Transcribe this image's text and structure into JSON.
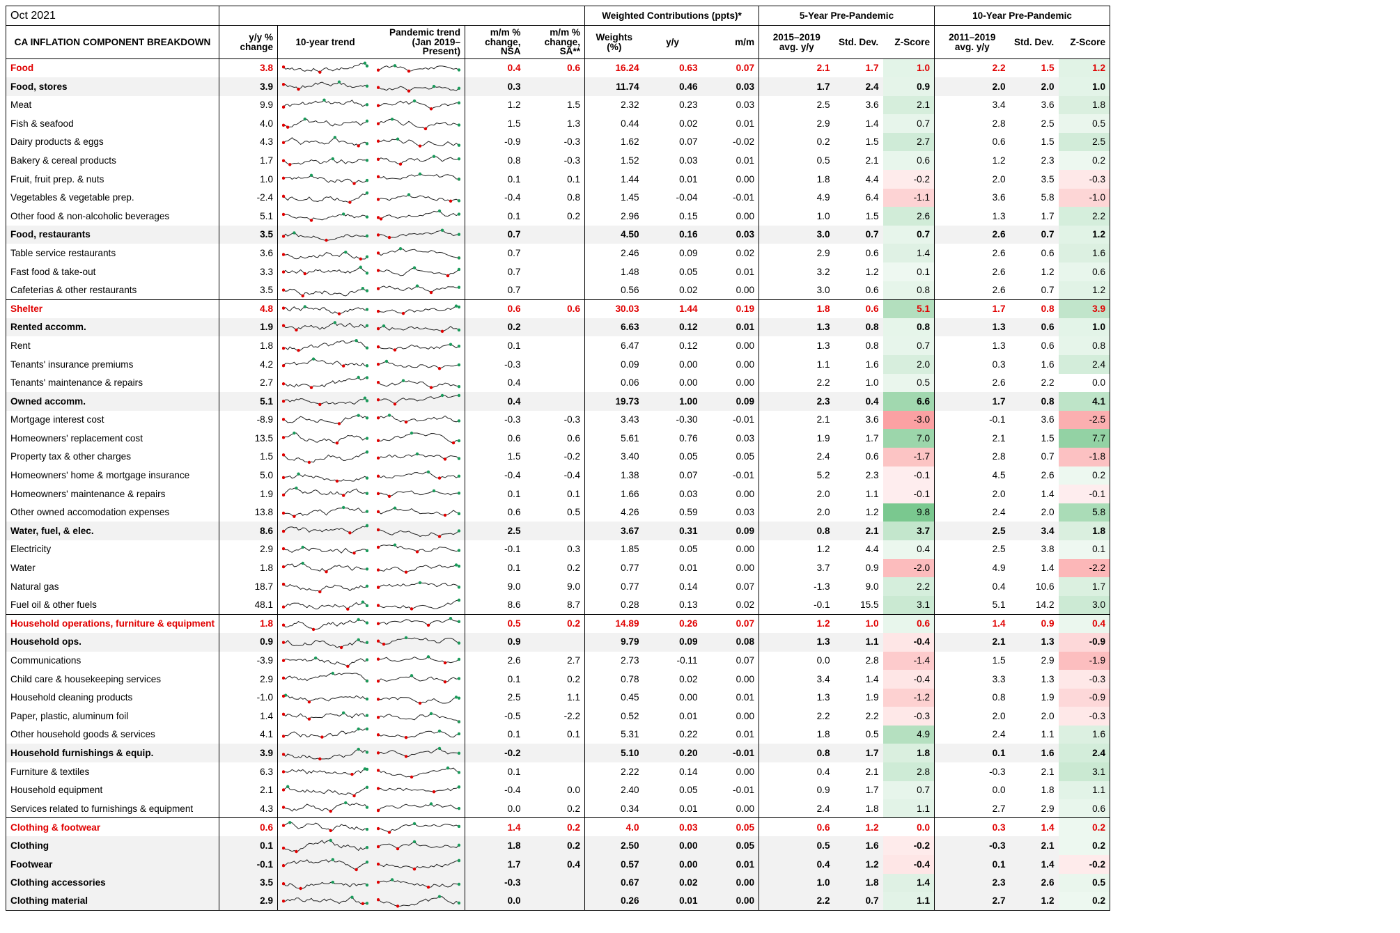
{
  "period": "Oct 2021",
  "group_headers": {
    "weighted": "Weighted Contributions (ppts)*",
    "five_year": "5-Year Pre-Pandemic",
    "ten_year": "10-Year Pre-Pandemic"
  },
  "columns": {
    "component": "CA INFLATION COMPONENT BREAKDOWN",
    "yy": "y/y % change",
    "trend10": "10-year trend",
    "pandemic": "Pandemic trend (Jan 2019–Present)",
    "mm_nsa": "m/m % change, NSA",
    "mm_sa": "m/m % change, SA**",
    "weights": "Weights (%)",
    "wc_yy": "y/y",
    "wc_mm": "m/m",
    "avg5": "2015–2019 avg. y/y",
    "sd5": "Std. Dev.",
    "z5": "Z-Score",
    "avg10": "2011–2019 avg. y/y",
    "sd10": "Std. Dev.",
    "z10": "Z-Score"
  },
  "colors": {
    "category": "#e00000",
    "positive_z": "#63be7b",
    "negative_z": "#f8696b",
    "subtotal_bg": "#f2f2f2"
  },
  "rows": [
    {
      "type": "cat",
      "name": "Food",
      "yy": "3.8",
      "mm_nsa": "0.4",
      "mm_sa": "0.6",
      "w": "16.24",
      "wy": "0.63",
      "wm": "0.07",
      "a5": "2.1",
      "s5": "1.7",
      "z5": "1.0",
      "a10": "2.2",
      "s10": "1.5",
      "z10": "1.2"
    },
    {
      "type": "sub",
      "name": "Food, stores",
      "yy": "3.9",
      "mm_nsa": "0.3",
      "mm_sa": "",
      "w": "11.74",
      "wy": "0.46",
      "wm": "0.03",
      "a5": "1.7",
      "s5": "2.4",
      "z5": "0.9",
      "a10": "2.0",
      "s10": "2.0",
      "z10": "1.0"
    },
    {
      "type": "item",
      "name": "Meat",
      "yy": "9.9",
      "mm_nsa": "1.2",
      "mm_sa": "1.5",
      "w": "2.32",
      "wy": "0.23",
      "wm": "0.03",
      "a5": "2.5",
      "s5": "3.6",
      "z5": "2.1",
      "a10": "3.4",
      "s10": "3.6",
      "z10": "1.8"
    },
    {
      "type": "item",
      "name": "Fish & seafood",
      "yy": "4.0",
      "mm_nsa": "1.5",
      "mm_sa": "1.3",
      "w": "0.44",
      "wy": "0.02",
      "wm": "0.01",
      "a5": "2.9",
      "s5": "1.4",
      "z5": "0.7",
      "a10": "2.8",
      "s10": "2.5",
      "z10": "0.5"
    },
    {
      "type": "item",
      "name": "Dairy products & eggs",
      "yy": "4.3",
      "mm_nsa": "-0.9",
      "mm_sa": "-0.3",
      "w": "1.62",
      "wy": "0.07",
      "wm": "-0.02",
      "a5": "0.2",
      "s5": "1.5",
      "z5": "2.7",
      "a10": "0.6",
      "s10": "1.5",
      "z10": "2.5"
    },
    {
      "type": "item",
      "name": "Bakery & cereal products",
      "yy": "1.7",
      "mm_nsa": "0.8",
      "mm_sa": "-0.3",
      "w": "1.52",
      "wy": "0.03",
      "wm": "0.01",
      "a5": "0.5",
      "s5": "2.1",
      "z5": "0.6",
      "a10": "1.2",
      "s10": "2.3",
      "z10": "0.2"
    },
    {
      "type": "item",
      "name": "Fruit, fruit prep. & nuts",
      "yy": "1.0",
      "mm_nsa": "0.1",
      "mm_sa": "0.1",
      "w": "1.44",
      "wy": "0.01",
      "wm": "0.00",
      "a5": "1.8",
      "s5": "4.4",
      "z5": "-0.2",
      "a10": "2.0",
      "s10": "3.5",
      "z10": "-0.3"
    },
    {
      "type": "item",
      "name": "Vegetables & vegetable prep.",
      "yy": "-2.4",
      "mm_nsa": "-0.4",
      "mm_sa": "0.8",
      "w": "1.45",
      "wy": "-0.04",
      "wm": "-0.01",
      "a5": "4.9",
      "s5": "6.4",
      "z5": "-1.1",
      "a10": "3.6",
      "s10": "5.8",
      "z10": "-1.0"
    },
    {
      "type": "item",
      "name": "Other food & non-alcoholic beverages",
      "yy": "5.1",
      "mm_nsa": "0.1",
      "mm_sa": "0.2",
      "w": "2.96",
      "wy": "0.15",
      "wm": "0.00",
      "a5": "1.0",
      "s5": "1.5",
      "z5": "2.6",
      "a10": "1.3",
      "s10": "1.7",
      "z10": "2.2"
    },
    {
      "type": "sub",
      "name": "Food, restaurants",
      "yy": "3.5",
      "mm_nsa": "0.7",
      "mm_sa": "",
      "w": "4.50",
      "wy": "0.16",
      "wm": "0.03",
      "a5": "3.0",
      "s5": "0.7",
      "z5": "0.7",
      "a10": "2.6",
      "s10": "0.7",
      "z10": "1.2"
    },
    {
      "type": "item",
      "name": "Table service restaurants",
      "yy": "3.6",
      "mm_nsa": "0.7",
      "mm_sa": "",
      "w": "2.46",
      "wy": "0.09",
      "wm": "0.02",
      "a5": "2.9",
      "s5": "0.6",
      "z5": "1.4",
      "a10": "2.6",
      "s10": "0.6",
      "z10": "1.6"
    },
    {
      "type": "item",
      "name": "Fast food & take-out",
      "yy": "3.3",
      "mm_nsa": "0.7",
      "mm_sa": "",
      "w": "1.48",
      "wy": "0.05",
      "wm": "0.01",
      "a5": "3.2",
      "s5": "1.2",
      "z5": "0.1",
      "a10": "2.6",
      "s10": "1.2",
      "z10": "0.6"
    },
    {
      "type": "item",
      "name": "Cafeterias & other restaurants",
      "yy": "3.5",
      "mm_nsa": "0.7",
      "mm_sa": "",
      "w": "0.56",
      "wy": "0.02",
      "wm": "0.00",
      "a5": "3.0",
      "s5": "0.6",
      "z5": "0.8",
      "a10": "2.6",
      "s10": "0.7",
      "z10": "1.2"
    },
    {
      "type": "cat",
      "name": "Shelter",
      "yy": "4.8",
      "mm_nsa": "0.6",
      "mm_sa": "0.6",
      "w": "30.03",
      "wy": "1.44",
      "wm": "0.19",
      "a5": "1.8",
      "s5": "0.6",
      "z5": "5.1",
      "a10": "1.7",
      "s10": "0.8",
      "z10": "3.9"
    },
    {
      "type": "sub",
      "name": "Rented accomm.",
      "yy": "1.9",
      "mm_nsa": "0.2",
      "mm_sa": "",
      "w": "6.63",
      "wy": "0.12",
      "wm": "0.01",
      "a5": "1.3",
      "s5": "0.8",
      "z5": "0.8",
      "a10": "1.3",
      "s10": "0.6",
      "z10": "1.0"
    },
    {
      "type": "item",
      "name": "Rent",
      "yy": "1.8",
      "mm_nsa": "0.1",
      "mm_sa": "",
      "w": "6.47",
      "wy": "0.12",
      "wm": "0.00",
      "a5": "1.3",
      "s5": "0.8",
      "z5": "0.7",
      "a10": "1.3",
      "s10": "0.6",
      "z10": "0.8"
    },
    {
      "type": "item",
      "name": "Tenants' insurance premiums",
      "yy": "4.2",
      "mm_nsa": "-0.3",
      "mm_sa": "",
      "w": "0.09",
      "wy": "0.00",
      "wm": "0.00",
      "a5": "1.1",
      "s5": "1.6",
      "z5": "2.0",
      "a10": "0.3",
      "s10": "1.6",
      "z10": "2.4"
    },
    {
      "type": "item",
      "name": "Tenants' maintenance & repairs",
      "yy": "2.7",
      "mm_nsa": "0.4",
      "mm_sa": "",
      "w": "0.06",
      "wy": "0.00",
      "wm": "0.00",
      "a5": "2.2",
      "s5": "1.0",
      "z5": "0.5",
      "a10": "2.6",
      "s10": "2.2",
      "z10": "0.0"
    },
    {
      "type": "sub",
      "name": "Owned accomm.",
      "yy": "5.1",
      "mm_nsa": "0.4",
      "mm_sa": "",
      "w": "19.73",
      "wy": "1.00",
      "wm": "0.09",
      "a5": "2.3",
      "s5": "0.4",
      "z5": "6.6",
      "a10": "1.7",
      "s10": "0.8",
      "z10": "4.1"
    },
    {
      "type": "item",
      "name": "Mortgage interest cost",
      "yy": "-8.9",
      "mm_nsa": "-0.3",
      "mm_sa": "-0.3",
      "w": "3.43",
      "wy": "-0.30",
      "wm": "-0.01",
      "a5": "2.1",
      "s5": "3.6",
      "z5": "-3.0",
      "a10": "-0.1",
      "s10": "3.6",
      "z10": "-2.5"
    },
    {
      "type": "item",
      "name": "Homeowners' replacement cost",
      "yy": "13.5",
      "mm_nsa": "0.6",
      "mm_sa": "0.6",
      "w": "5.61",
      "wy": "0.76",
      "wm": "0.03",
      "a5": "1.9",
      "s5": "1.7",
      "z5": "7.0",
      "a10": "2.1",
      "s10": "1.5",
      "z10": "7.7"
    },
    {
      "type": "item",
      "name": "Property tax & other charges",
      "yy": "1.5",
      "mm_nsa": "1.5",
      "mm_sa": "-0.2",
      "w": "3.40",
      "wy": "0.05",
      "wm": "0.05",
      "a5": "2.4",
      "s5": "0.6",
      "z5": "-1.7",
      "a10": "2.8",
      "s10": "0.7",
      "z10": "-1.8"
    },
    {
      "type": "item",
      "name": "Homeowners' home & mortgage insurance",
      "yy": "5.0",
      "mm_nsa": "-0.4",
      "mm_sa": "-0.4",
      "w": "1.38",
      "wy": "0.07",
      "wm": "-0.01",
      "a5": "5.2",
      "s5": "2.3",
      "z5": "-0.1",
      "a10": "4.5",
      "s10": "2.6",
      "z10": "0.2"
    },
    {
      "type": "item",
      "name": "Homeowners' maintenance & repairs",
      "yy": "1.9",
      "mm_nsa": "0.1",
      "mm_sa": "0.1",
      "w": "1.66",
      "wy": "0.03",
      "wm": "0.00",
      "a5": "2.0",
      "s5": "1.1",
      "z5": "-0.1",
      "a10": "2.0",
      "s10": "1.4",
      "z10": "-0.1"
    },
    {
      "type": "item",
      "name": "Other owned accomodation expenses",
      "yy": "13.8",
      "mm_nsa": "0.6",
      "mm_sa": "0.5",
      "w": "4.26",
      "wy": "0.59",
      "wm": "0.03",
      "a5": "2.0",
      "s5": "1.2",
      "z5": "9.8",
      "a10": "2.4",
      "s10": "2.0",
      "z10": "5.8"
    },
    {
      "type": "sub",
      "name": "Water, fuel, & elec.",
      "yy": "8.6",
      "mm_nsa": "2.5",
      "mm_sa": "",
      "w": "3.67",
      "wy": "0.31",
      "wm": "0.09",
      "a5": "0.8",
      "s5": "2.1",
      "z5": "3.7",
      "a10": "2.5",
      "s10": "3.4",
      "z10": "1.8"
    },
    {
      "type": "item",
      "name": "Electricity",
      "yy": "2.9",
      "mm_nsa": "-0.1",
      "mm_sa": "0.3",
      "w": "1.85",
      "wy": "0.05",
      "wm": "0.00",
      "a5": "1.2",
      "s5": "4.4",
      "z5": "0.4",
      "a10": "2.5",
      "s10": "3.8",
      "z10": "0.1"
    },
    {
      "type": "item",
      "name": "Water",
      "yy": "1.8",
      "mm_nsa": "0.1",
      "mm_sa": "0.2",
      "w": "0.77",
      "wy": "0.01",
      "wm": "0.00",
      "a5": "3.7",
      "s5": "0.9",
      "z5": "-2.0",
      "a10": "4.9",
      "s10": "1.4",
      "z10": "-2.2"
    },
    {
      "type": "item",
      "name": "Natural gas",
      "yy": "18.7",
      "mm_nsa": "9.0",
      "mm_sa": "9.0",
      "w": "0.77",
      "wy": "0.14",
      "wm": "0.07",
      "a5": "-1.3",
      "s5": "9.0",
      "z5": "2.2",
      "a10": "0.4",
      "s10": "10.6",
      "z10": "1.7"
    },
    {
      "type": "item",
      "name": "Fuel oil & other fuels",
      "yy": "48.1",
      "mm_nsa": "8.6",
      "mm_sa": "8.7",
      "w": "0.28",
      "wy": "0.13",
      "wm": "0.02",
      "a5": "-0.1",
      "s5": "15.5",
      "z5": "3.1",
      "a10": "5.1",
      "s10": "14.2",
      "z10": "3.0"
    },
    {
      "type": "cat",
      "name": "Household operations, furniture & equipment",
      "yy": "1.8",
      "mm_nsa": "0.5",
      "mm_sa": "0.2",
      "w": "14.89",
      "wy": "0.26",
      "wm": "0.07",
      "a5": "1.2",
      "s5": "1.0",
      "z5": "0.6",
      "a10": "1.4",
      "s10": "0.9",
      "z10": "0.4"
    },
    {
      "type": "sub",
      "name": "Household ops.",
      "yy": "0.9",
      "mm_nsa": "0.9",
      "mm_sa": "",
      "w": "9.79",
      "wy": "0.09",
      "wm": "0.08",
      "a5": "1.3",
      "s5": "1.1",
      "z5": "-0.4",
      "a10": "2.1",
      "s10": "1.3",
      "z10": "-0.9"
    },
    {
      "type": "item",
      "name": "Communications",
      "yy": "-3.9",
      "mm_nsa": "2.6",
      "mm_sa": "2.7",
      "w": "2.73",
      "wy": "-0.11",
      "wm": "0.07",
      "a5": "0.0",
      "s5": "2.8",
      "z5": "-1.4",
      "a10": "1.5",
      "s10": "2.9",
      "z10": "-1.9"
    },
    {
      "type": "item",
      "name": "Child care & housekeeping services",
      "yy": "2.9",
      "mm_nsa": "0.1",
      "mm_sa": "0.2",
      "w": "0.78",
      "wy": "0.02",
      "wm": "0.00",
      "a5": "3.4",
      "s5": "1.4",
      "z5": "-0.4",
      "a10": "3.3",
      "s10": "1.3",
      "z10": "-0.3"
    },
    {
      "type": "item",
      "name": "Household cleaning products",
      "yy": "-1.0",
      "mm_nsa": "2.5",
      "mm_sa": "1.1",
      "w": "0.45",
      "wy": "0.00",
      "wm": "0.01",
      "a5": "1.3",
      "s5": "1.9",
      "z5": "-1.2",
      "a10": "0.8",
      "s10": "1.9",
      "z10": "-0.9"
    },
    {
      "type": "item",
      "name": "Paper, plastic, aluminum foil",
      "yy": "1.4",
      "mm_nsa": "-0.5",
      "mm_sa": "-2.2",
      "w": "0.52",
      "wy": "0.01",
      "wm": "0.00",
      "a5": "2.2",
      "s5": "2.2",
      "z5": "-0.3",
      "a10": "2.0",
      "s10": "2.0",
      "z10": "-0.3"
    },
    {
      "type": "item",
      "name": "Other household goods & services",
      "yy": "4.1",
      "mm_nsa": "0.1",
      "mm_sa": "0.1",
      "w": "5.31",
      "wy": "0.22",
      "wm": "0.01",
      "a5": "1.8",
      "s5": "0.5",
      "z5": "4.9",
      "a10": "2.4",
      "s10": "1.1",
      "z10": "1.6"
    },
    {
      "type": "sub",
      "name": "Household furnishings & equip.",
      "yy": "3.9",
      "mm_nsa": "-0.2",
      "mm_sa": "",
      "w": "5.10",
      "wy": "0.20",
      "wm": "-0.01",
      "a5": "0.8",
      "s5": "1.7",
      "z5": "1.8",
      "a10": "0.1",
      "s10": "1.6",
      "z10": "2.4"
    },
    {
      "type": "item",
      "name": "Furniture & textiles",
      "yy": "6.3",
      "mm_nsa": "0.1",
      "mm_sa": "",
      "w": "2.22",
      "wy": "0.14",
      "wm": "0.00",
      "a5": "0.4",
      "s5": "2.1",
      "z5": "2.8",
      "a10": "-0.3",
      "s10": "2.1",
      "z10": "3.1"
    },
    {
      "type": "item",
      "name": "Household equipment",
      "yy": "2.1",
      "mm_nsa": "-0.4",
      "mm_sa": "0.0",
      "w": "2.40",
      "wy": "0.05",
      "wm": "-0.01",
      "a5": "0.9",
      "s5": "1.7",
      "z5": "0.7",
      "a10": "0.0",
      "s10": "1.8",
      "z10": "1.1"
    },
    {
      "type": "item",
      "name": "Services related to furnishings & equipment",
      "yy": "4.3",
      "mm_nsa": "0.0",
      "mm_sa": "0.2",
      "w": "0.34",
      "wy": "0.01",
      "wm": "0.00",
      "a5": "2.4",
      "s5": "1.8",
      "z5": "1.1",
      "a10": "2.7",
      "s10": "2.9",
      "z10": "0.6"
    },
    {
      "type": "cat",
      "name": "Clothing & footwear",
      "yy": "0.6",
      "mm_nsa": "1.4",
      "mm_sa": "0.2",
      "w": "4.0",
      "wy": "0.03",
      "wm": "0.05",
      "a5": "0.6",
      "s5": "1.2",
      "z5": "0.0",
      "a10": "0.3",
      "s10": "1.4",
      "z10": "0.2"
    },
    {
      "type": "sub",
      "name": "Clothing",
      "yy": "0.1",
      "mm_nsa": "1.8",
      "mm_sa": "0.2",
      "w": "2.50",
      "wy": "0.00",
      "wm": "0.05",
      "a5": "0.5",
      "s5": "1.6",
      "z5": "-0.2",
      "a10": "-0.3",
      "s10": "2.1",
      "z10": "0.2"
    },
    {
      "type": "sub",
      "name": "Footwear",
      "yy": "-0.1",
      "mm_nsa": "1.7",
      "mm_sa": "0.4",
      "w": "0.57",
      "wy": "0.00",
      "wm": "0.01",
      "a5": "0.4",
      "s5": "1.2",
      "z5": "-0.4",
      "a10": "0.1",
      "s10": "1.4",
      "z10": "-0.2"
    },
    {
      "type": "sub",
      "name": "Clothing accessories",
      "yy": "3.5",
      "mm_nsa": "-0.3",
      "mm_sa": "",
      "w": "0.67",
      "wy": "0.02",
      "wm": "0.00",
      "a5": "1.0",
      "s5": "1.8",
      "z5": "1.4",
      "a10": "2.3",
      "s10": "2.6",
      "z10": "0.5"
    },
    {
      "type": "sub",
      "name": "Clothing material",
      "yy": "2.9",
      "mm_nsa": "0.0",
      "mm_sa": "",
      "w": "0.26",
      "wy": "0.01",
      "wm": "0.00",
      "a5": "2.2",
      "s5": "0.7",
      "z5": "1.1",
      "a10": "2.7",
      "s10": "1.2",
      "z10": "0.2"
    }
  ]
}
